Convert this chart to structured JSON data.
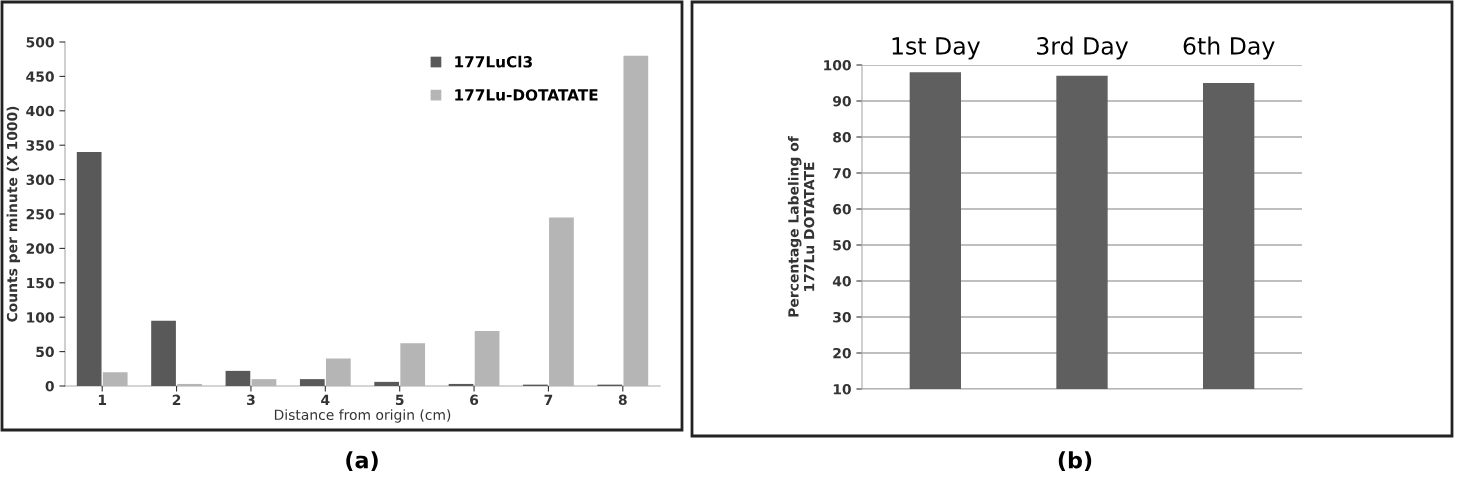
{
  "chart_data": [
    {
      "type": "bar",
      "categories": [
        "1",
        "2",
        "3",
        "4",
        "5",
        "6",
        "7",
        "8"
      ],
      "series": [
        {
          "name": "177LuCl3",
          "color": "#595959",
          "values": [
            340,
            95,
            22,
            10,
            6,
            3,
            2,
            2
          ]
        },
        {
          "name": "177Lu-DOTATATE",
          "color": "#b5b5b5",
          "values": [
            20,
            3,
            10,
            40,
            62,
            80,
            245,
            480
          ]
        }
      ],
      "xlabel": "Distance from origin (cm)",
      "ylabel": "Counts per minute (X 1000)",
      "ylim": [
        0,
        500
      ],
      "yticks": [
        0,
        50,
        100,
        150,
        200,
        250,
        300,
        350,
        400,
        450,
        500
      ],
      "grid": false,
      "legend": "top right",
      "annotations": [
        "(a)"
      ]
    },
    {
      "type": "bar",
      "categories": [
        "1st Day",
        "3rd Day",
        "6th Day"
      ],
      "values": [
        98,
        97,
        95
      ],
      "color": "#5f5f5f",
      "ylabel": "Percentage Labeling of\n177Lu DOTATATE",
      "ylim": [
        10,
        100
      ],
      "yticks": [
        10,
        20,
        30,
        40,
        50,
        60,
        70,
        80,
        90,
        100
      ],
      "grid": "y",
      "annotations": [
        "(b)"
      ]
    }
  ]
}
